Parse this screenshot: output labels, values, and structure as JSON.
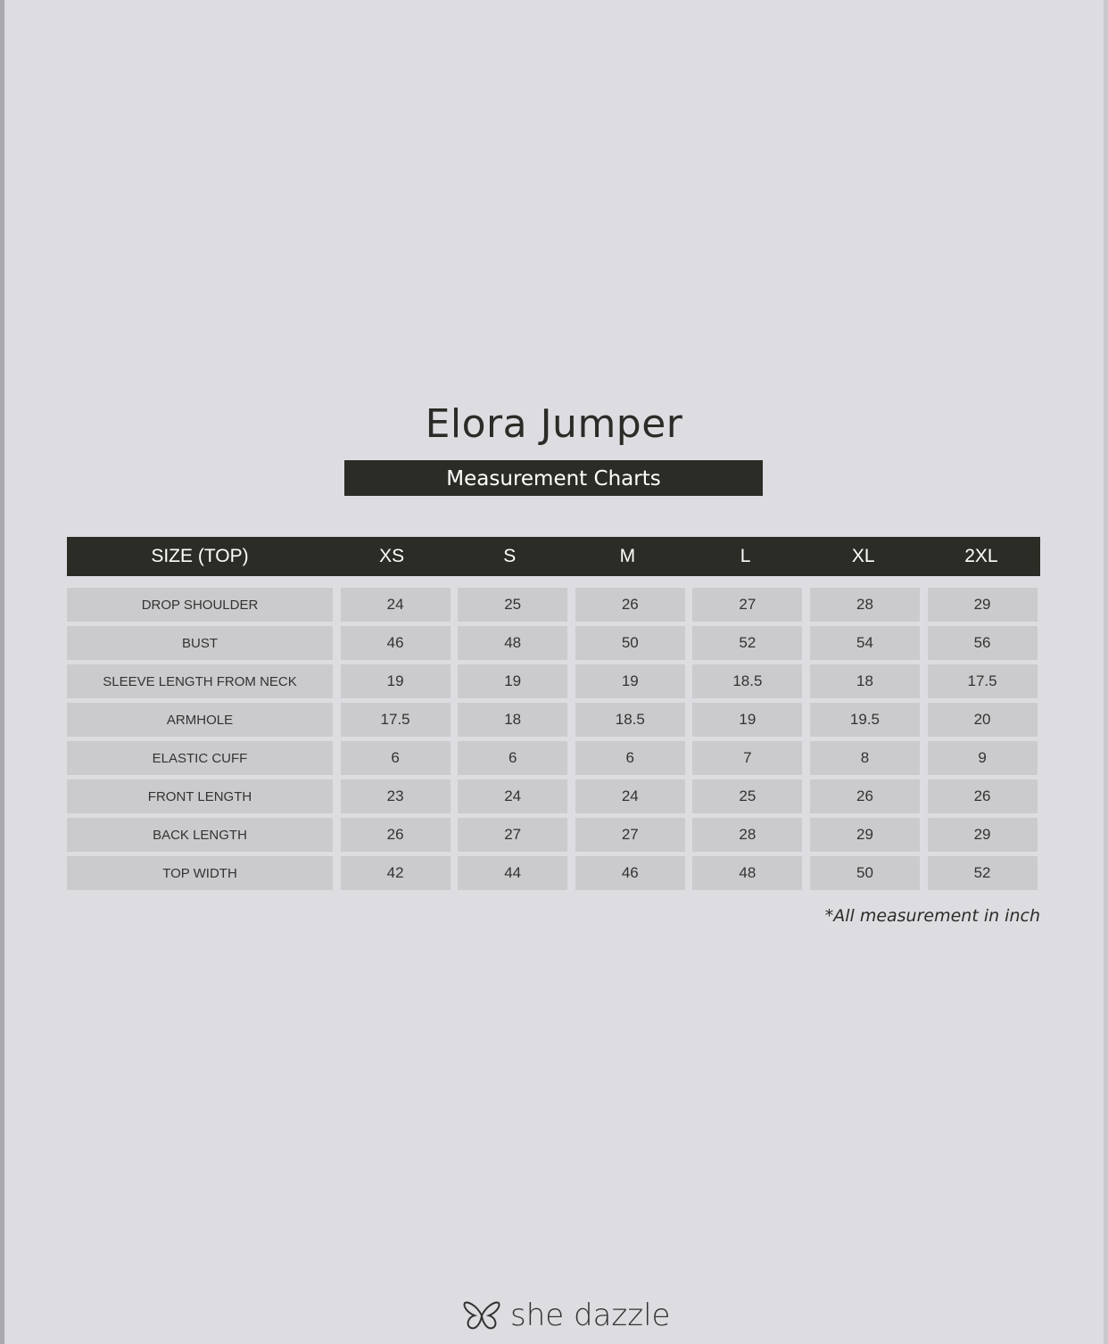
{
  "title": "Elora Jumper",
  "subtitle": "Measurement Charts",
  "table": {
    "headers": [
      "SIZE (TOP)",
      "XS",
      "S",
      "M",
      "L",
      "XL",
      "2XL"
    ],
    "rows": [
      {
        "label": "DROP SHOULDER",
        "values": [
          "24",
          "25",
          "26",
          "27",
          "28",
          "29"
        ]
      },
      {
        "label": "BUST",
        "values": [
          "46",
          "48",
          "50",
          "52",
          "54",
          "56"
        ]
      },
      {
        "label": "SLEEVE LENGTH FROM NECK",
        "values": [
          "19",
          "19",
          "19",
          "18.5",
          "18",
          "17.5"
        ]
      },
      {
        "label": "ARMHOLE",
        "values": [
          "17.5",
          "18",
          "18.5",
          "19",
          "19.5",
          "20"
        ]
      },
      {
        "label": "ELASTIC CUFF",
        "values": [
          "6",
          "6",
          "6",
          "7",
          "8",
          "9"
        ]
      },
      {
        "label": "FRONT LENGTH",
        "values": [
          "23",
          "24",
          "24",
          "25",
          "26",
          "26"
        ]
      },
      {
        "label": "BACK LENGTH",
        "values": [
          "26",
          "27",
          "27",
          "28",
          "29",
          "29"
        ]
      },
      {
        "label": "TOP WIDTH",
        "values": [
          "42",
          "44",
          "46",
          "48",
          "50",
          "52"
        ]
      }
    ]
  },
  "note": "*All measurement in inch",
  "brand": {
    "name": "she dazzle",
    "icon": "butterfly-icon"
  },
  "colors": {
    "background": "#dddce1",
    "header": "#2c2c26",
    "cell": "#cbcbcd"
  }
}
